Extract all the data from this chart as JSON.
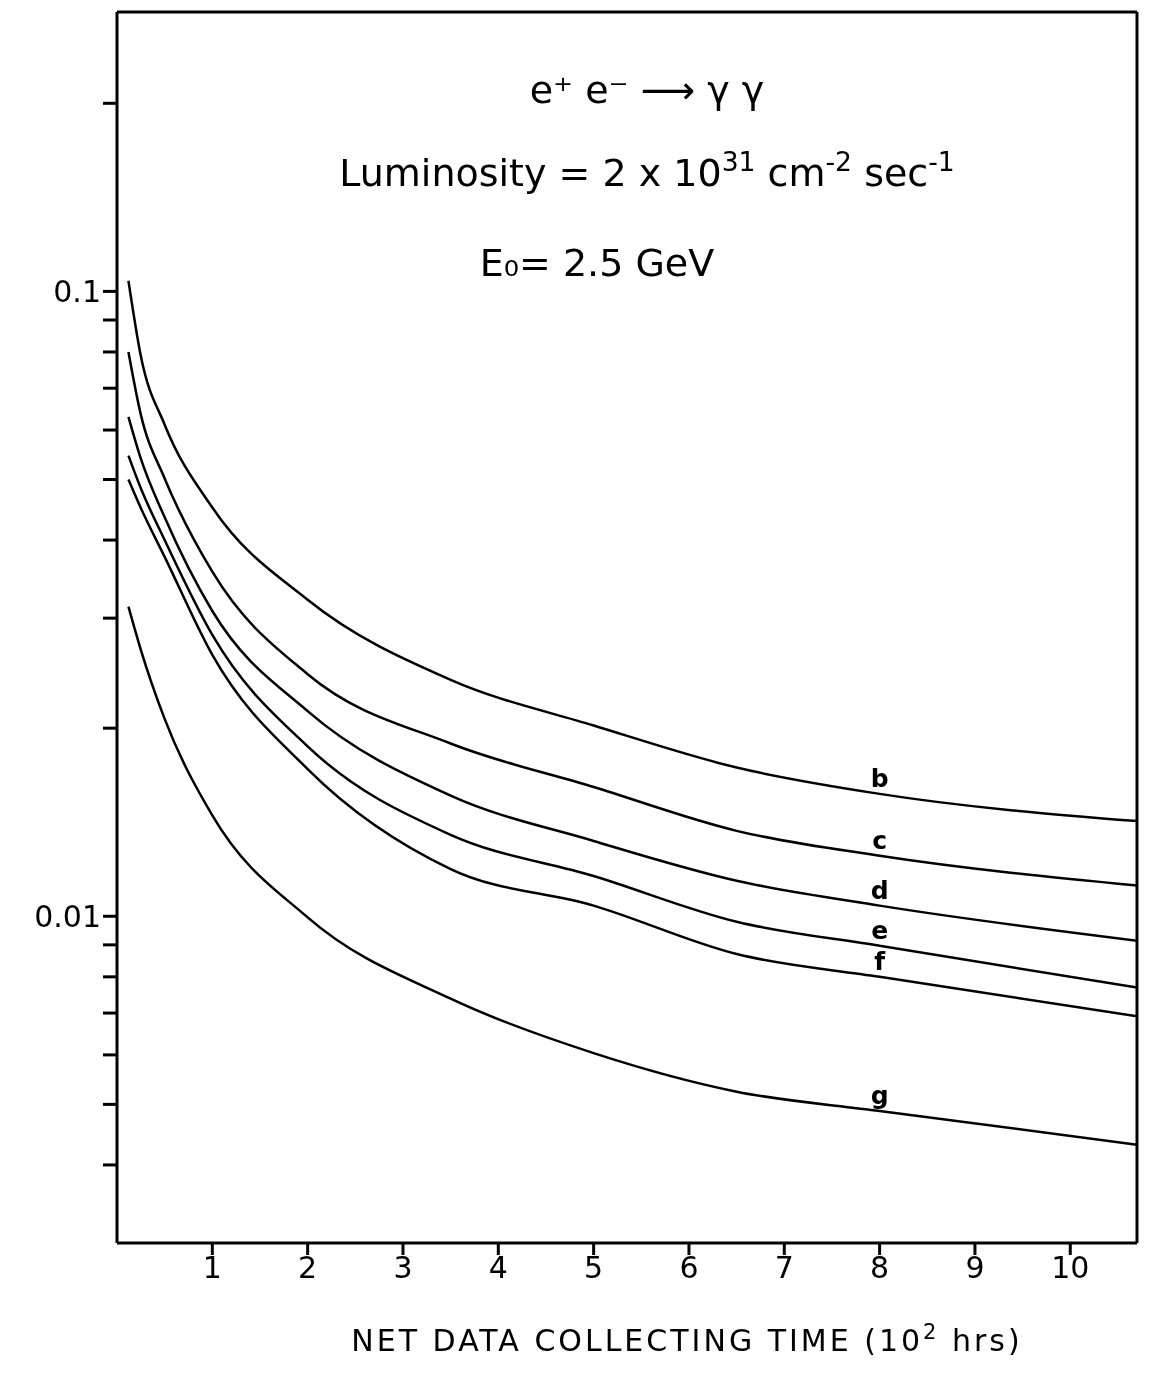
{
  "chart_data": {
    "type": "line",
    "title": "e⁺ e⁻ ⟶ γ γ",
    "subtitle": "Luminosity = 2 x 10$^{31}$ cm$^{-2}$ sec$^{-1}$",
    "annotations": [
      "E₀= 2.5 GeV"
    ],
    "xlabel": "NET DATA COLLECTING TIME (10$^{2}$ hrs)",
    "x": [
      0.12,
      0.25,
      0.5,
      1,
      2,
      3.5,
      5,
      6.5,
      8,
      10.7
    ],
    "series": [
      {
        "name": "b",
        "color": "#000000",
        "values": [
          0.104,
          0.0788,
          0.0612,
          0.0451,
          0.0321,
          0.0239,
          0.0202,
          0.0173,
          0.0157,
          0.0142
        ]
      },
      {
        "name": "c",
        "color": "#000000",
        "values": [
          0.08,
          0.0635,
          0.0502,
          0.0356,
          0.0244,
          0.0189,
          0.0161,
          0.0137,
          0.0125,
          0.0112
        ]
      },
      {
        "name": "d",
        "color": "#000000",
        "values": [
          0.063,
          0.054,
          0.0435,
          0.0308,
          0.0213,
          0.0156,
          0.0132,
          0.0114,
          0.0104,
          0.00914
        ]
      },
      {
        "name": "e",
        "color": "#000000",
        "values": [
          0.0546,
          0.0484,
          0.04,
          0.0282,
          0.0187,
          0.0135,
          0.0116,
          0.0098,
          0.00897,
          0.00769
        ]
      },
      {
        "name": "f",
        "color": "#000000",
        "values": [
          0.05,
          0.045,
          0.0376,
          0.0262,
          0.0172,
          0.0119,
          0.0104,
          0.0087,
          0.008,
          0.00692
        ]
      },
      {
        "name": "g",
        "color": "#000000",
        "values": [
          0.0313,
          0.0267,
          0.0207,
          0.0145,
          0.00996,
          0.00738,
          0.00604,
          0.00524,
          0.00488,
          0.00431
        ]
      }
    ],
    "log": "y",
    "grid": false,
    "legend": false,
    "marker": "none",
    "line_style": "solid",
    "xlim": [
      0,
      10.7
    ],
    "xticks": [
      1,
      2,
      3,
      4,
      5,
      6,
      7,
      8,
      9,
      10
    ],
    "ylim": [
      0.003,
      0.28
    ],
    "yticks": [
      {
        "value": 0.2,
        "label": null
      },
      {
        "value": 0.1,
        "label": "0.1"
      },
      {
        "value": 0.09,
        "label": null
      },
      {
        "value": 0.08,
        "label": null
      },
      {
        "value": 0.07,
        "label": null
      },
      {
        "value": 0.06,
        "label": null
      },
      {
        "value": 0.05,
        "label": null
      },
      {
        "value": 0.04,
        "label": null
      },
      {
        "value": 0.03,
        "label": null
      },
      {
        "value": 0.02,
        "label": null
      },
      {
        "value": 0.01,
        "label": "0.01"
      },
      {
        "value": 0.009,
        "label": null
      },
      {
        "value": 0.008,
        "label": null
      },
      {
        "value": 0.007,
        "label": null
      },
      {
        "value": 0.006,
        "label": null
      },
      {
        "value": 0.005,
        "label": null
      },
      {
        "value": 0.004,
        "label": null
      }
    ]
  }
}
